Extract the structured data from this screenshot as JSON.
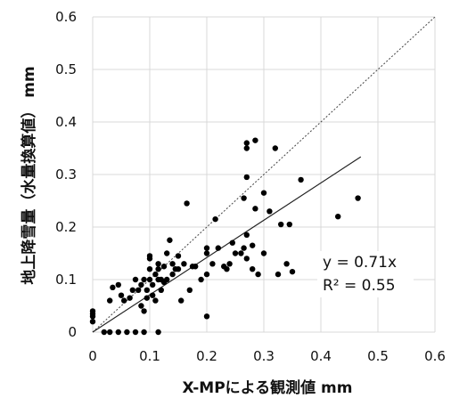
{
  "chart_data": {
    "type": "scatter",
    "xlabel": "X-MPによる観測値 mm",
    "ylabel": "地上降雪量（水量換算値） mm",
    "xlim": [
      0,
      0.6
    ],
    "ylim": [
      0,
      0.6
    ],
    "x_ticks": [
      "0",
      "0.1",
      "0.2",
      "0.3",
      "0.4",
      "0.5",
      "0.6"
    ],
    "y_ticks": [
      "0",
      "0.1",
      "0.2",
      "0.3",
      "0.4",
      "0.5",
      "0.6"
    ],
    "grid": true,
    "reference_line": {
      "style": "dotted",
      "slope": 1
    },
    "regression": {
      "slope": 0.71,
      "x_end": 0.47
    },
    "annotations": [
      "y = 0.71x",
      "R² = 0.55"
    ],
    "points": [
      [
        0,
        0.02
      ],
      [
        0,
        0.03
      ],
      [
        0,
        0.035
      ],
      [
        0,
        0.04
      ],
      [
        0.02,
        0
      ],
      [
        0.03,
        0
      ],
      [
        0.045,
        0
      ],
      [
        0.06,
        0
      ],
      [
        0.075,
        0
      ],
      [
        0.09,
        0
      ],
      [
        0.115,
        0
      ],
      [
        0.03,
        0.06
      ],
      [
        0.035,
        0.085
      ],
      [
        0.045,
        0.09
      ],
      [
        0.05,
        0.07
      ],
      [
        0.055,
        0.06
      ],
      [
        0.065,
        0.065
      ],
      [
        0.07,
        0.08
      ],
      [
        0.075,
        0.1
      ],
      [
        0.08,
        0.08
      ],
      [
        0.085,
        0.09
      ],
      [
        0.085,
        0.05
      ],
      [
        0.09,
        0.04
      ],
      [
        0.09,
        0.1
      ],
      [
        0.095,
        0.08
      ],
      [
        0.095,
        0.065
      ],
      [
        0.1,
        0.1
      ],
      [
        0.1,
        0.12
      ],
      [
        0.1,
        0.14
      ],
      [
        0.1,
        0.145
      ],
      [
        0.105,
        0.09
      ],
      [
        0.105,
        0.07
      ],
      [
        0.11,
        0.06
      ],
      [
        0.11,
        0.11
      ],
      [
        0.115,
        0.12
      ],
      [
        0.115,
        0.1
      ],
      [
        0.115,
        0.13
      ],
      [
        0.12,
        0.1
      ],
      [
        0.12,
        0.08
      ],
      [
        0.125,
        0.125
      ],
      [
        0.125,
        0.095
      ],
      [
        0.13,
        0.15
      ],
      [
        0.13,
        0.1
      ],
      [
        0.135,
        0.175
      ],
      [
        0.14,
        0.13
      ],
      [
        0.14,
        0.11
      ],
      [
        0.145,
        0.12
      ],
      [
        0.15,
        0.12
      ],
      [
        0.15,
        0.145
      ],
      [
        0.155,
        0.06
      ],
      [
        0.16,
        0.13
      ],
      [
        0.165,
        0.245
      ],
      [
        0.17,
        0.08
      ],
      [
        0.175,
        0.125
      ],
      [
        0.18,
        0.125
      ],
      [
        0.19,
        0.1
      ],
      [
        0.2,
        0.16
      ],
      [
        0.2,
        0.15
      ],
      [
        0.2,
        0.11
      ],
      [
        0.2,
        0.03
      ],
      [
        0.21,
        0.13
      ],
      [
        0.215,
        0.215
      ],
      [
        0.22,
        0.16
      ],
      [
        0.23,
        0.125
      ],
      [
        0.235,
        0.12
      ],
      [
        0.24,
        0.13
      ],
      [
        0.245,
        0.17
      ],
      [
        0.25,
        0.15
      ],
      [
        0.26,
        0.15
      ],
      [
        0.265,
        0.16
      ],
      [
        0.265,
        0.255
      ],
      [
        0.27,
        0.185
      ],
      [
        0.27,
        0.14
      ],
      [
        0.27,
        0.295
      ],
      [
        0.27,
        0.35
      ],
      [
        0.27,
        0.36
      ],
      [
        0.28,
        0.165
      ],
      [
        0.28,
        0.12
      ],
      [
        0.285,
        0.235
      ],
      [
        0.285,
        0.365
      ],
      [
        0.29,
        0.11
      ],
      [
        0.3,
        0.265
      ],
      [
        0.3,
        0.15
      ],
      [
        0.31,
        0.23
      ],
      [
        0.32,
        0.35
      ],
      [
        0.325,
        0.11
      ],
      [
        0.33,
        0.205
      ],
      [
        0.34,
        0.13
      ],
      [
        0.345,
        0.205
      ],
      [
        0.35,
        0.115
      ],
      [
        0.365,
        0.29
      ],
      [
        0.43,
        0.22
      ],
      [
        0.465,
        0.255
      ]
    ]
  }
}
